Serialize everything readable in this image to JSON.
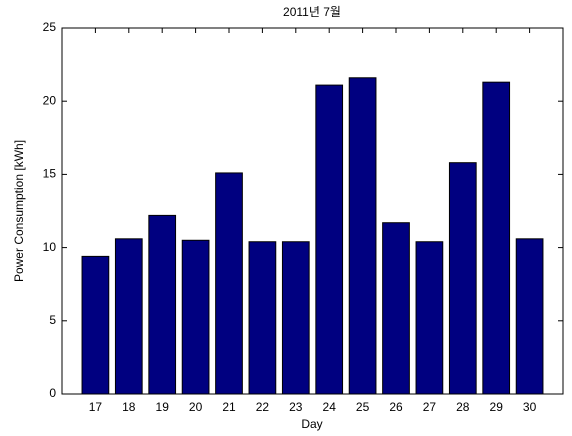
{
  "chart_data": {
    "type": "bar",
    "title": "2011년 7월",
    "x_label": "Day",
    "y_label": "Power Consumption [kWh]",
    "categories": [
      "17",
      "18",
      "19",
      "20",
      "21",
      "22",
      "23",
      "24",
      "25",
      "26",
      "27",
      "28",
      "29",
      "30"
    ],
    "values": [
      9.4,
      10.6,
      12.2,
      10.5,
      15.1,
      10.4,
      10.4,
      21.1,
      21.6,
      11.7,
      10.4,
      15.8,
      21.3,
      10.6
    ],
    "color": "#000080",
    "ylim": [
      0,
      25
    ],
    "yticks": [
      0,
      5,
      10,
      15,
      20,
      25
    ],
    "grid": false
  }
}
